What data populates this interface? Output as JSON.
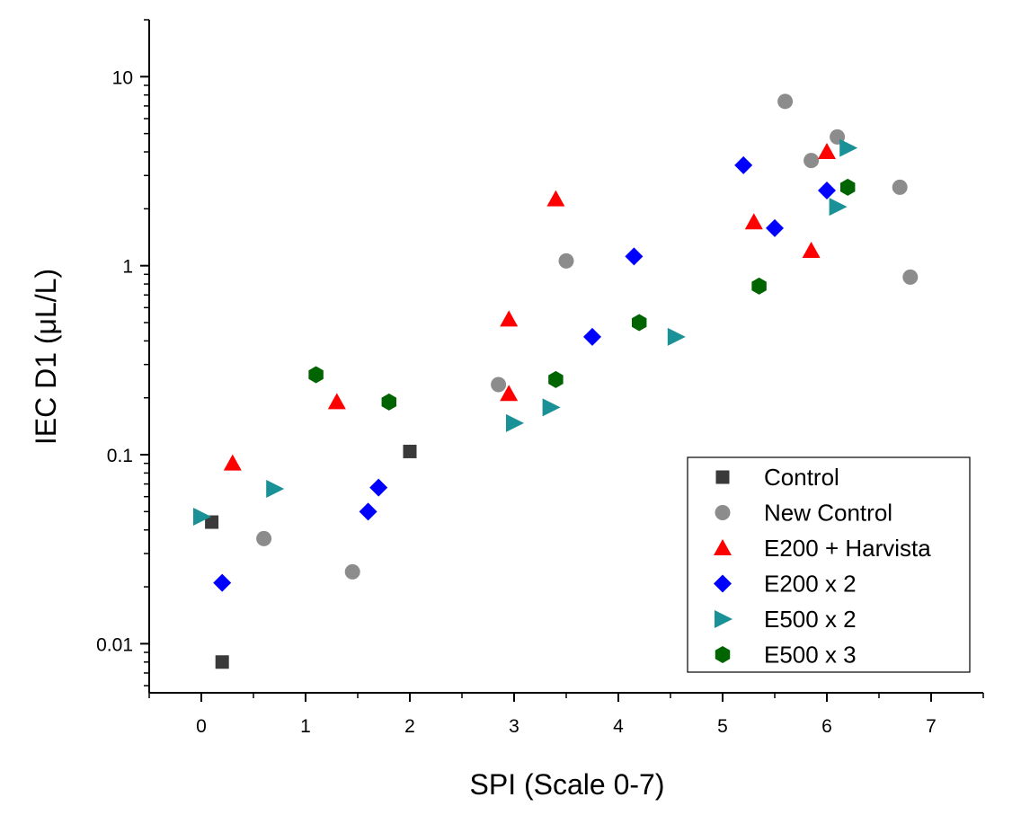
{
  "chart_data": {
    "type": "scatter",
    "xlabel": "SPI (Scale 0-7)",
    "ylabel": "IEC D1 (μL/L)",
    "xlim": [
      -0.5,
      7.5
    ],
    "ylim": [
      0.0055,
      20
    ],
    "yscale": "log",
    "x_ticks": [
      0,
      1,
      2,
      3,
      4,
      5,
      6,
      7
    ],
    "x_tick_labels": [
      "0",
      "1",
      "2",
      "3",
      "4",
      "5",
      "6",
      "7"
    ],
    "y_ticks": [
      0.01,
      0.1,
      1,
      10
    ],
    "y_tick_labels": [
      "0.01",
      "0.1",
      "1",
      "10"
    ],
    "grid": false,
    "legend_position": "bottom-right",
    "series": [
      {
        "name": "Control",
        "marker": "square",
        "color": "#3a3a3a",
        "points": [
          [
            0.1,
            0.044
          ],
          [
            0.2,
            0.008
          ],
          [
            2.0,
            0.104
          ]
        ]
      },
      {
        "name": "New Control",
        "marker": "circle",
        "color": "#8c8c8c",
        "points": [
          [
            0.6,
            0.036
          ],
          [
            1.45,
            0.024
          ],
          [
            2.85,
            0.235
          ],
          [
            3.5,
            1.06
          ],
          [
            5.6,
            7.4
          ],
          [
            5.85,
            3.6
          ],
          [
            6.1,
            4.8
          ],
          [
            6.7,
            2.6
          ],
          [
            6.8,
            0.87
          ]
        ]
      },
      {
        "name": "E200 + Harvista",
        "marker": "triangle-up",
        "color": "#ff0000",
        "points": [
          [
            0.3,
            0.09
          ],
          [
            1.3,
            0.19
          ],
          [
            2.95,
            0.52
          ],
          [
            2.95,
            0.21
          ],
          [
            3.4,
            2.25
          ],
          [
            5.3,
            1.7
          ],
          [
            5.85,
            1.2
          ],
          [
            6.0,
            4.0
          ]
        ]
      },
      {
        "name": "E200 x 2",
        "marker": "diamond",
        "color": "#0000ff",
        "points": [
          [
            0.2,
            0.021
          ],
          [
            1.6,
            0.05
          ],
          [
            1.7,
            0.067
          ],
          [
            3.75,
            0.42
          ],
          [
            4.15,
            1.12
          ],
          [
            5.2,
            3.4
          ],
          [
            5.5,
            1.58
          ],
          [
            6.0,
            2.5
          ]
        ]
      },
      {
        "name": "E500 x 2",
        "marker": "triangle-right",
        "color": "#1a9196",
        "points": [
          [
            0.0,
            0.047
          ],
          [
            0.7,
            0.066
          ],
          [
            3.0,
            0.147
          ],
          [
            3.35,
            0.178
          ],
          [
            4.55,
            0.42
          ],
          [
            6.1,
            2.05
          ],
          [
            6.2,
            4.2
          ]
        ]
      },
      {
        "name": "E500 x 3",
        "marker": "hexagon",
        "color": "#006400",
        "points": [
          [
            1.1,
            0.265
          ],
          [
            1.8,
            0.19
          ],
          [
            3.4,
            0.25
          ],
          [
            4.2,
            0.5
          ],
          [
            5.35,
            0.78
          ],
          [
            6.2,
            2.6
          ]
        ]
      }
    ]
  }
}
